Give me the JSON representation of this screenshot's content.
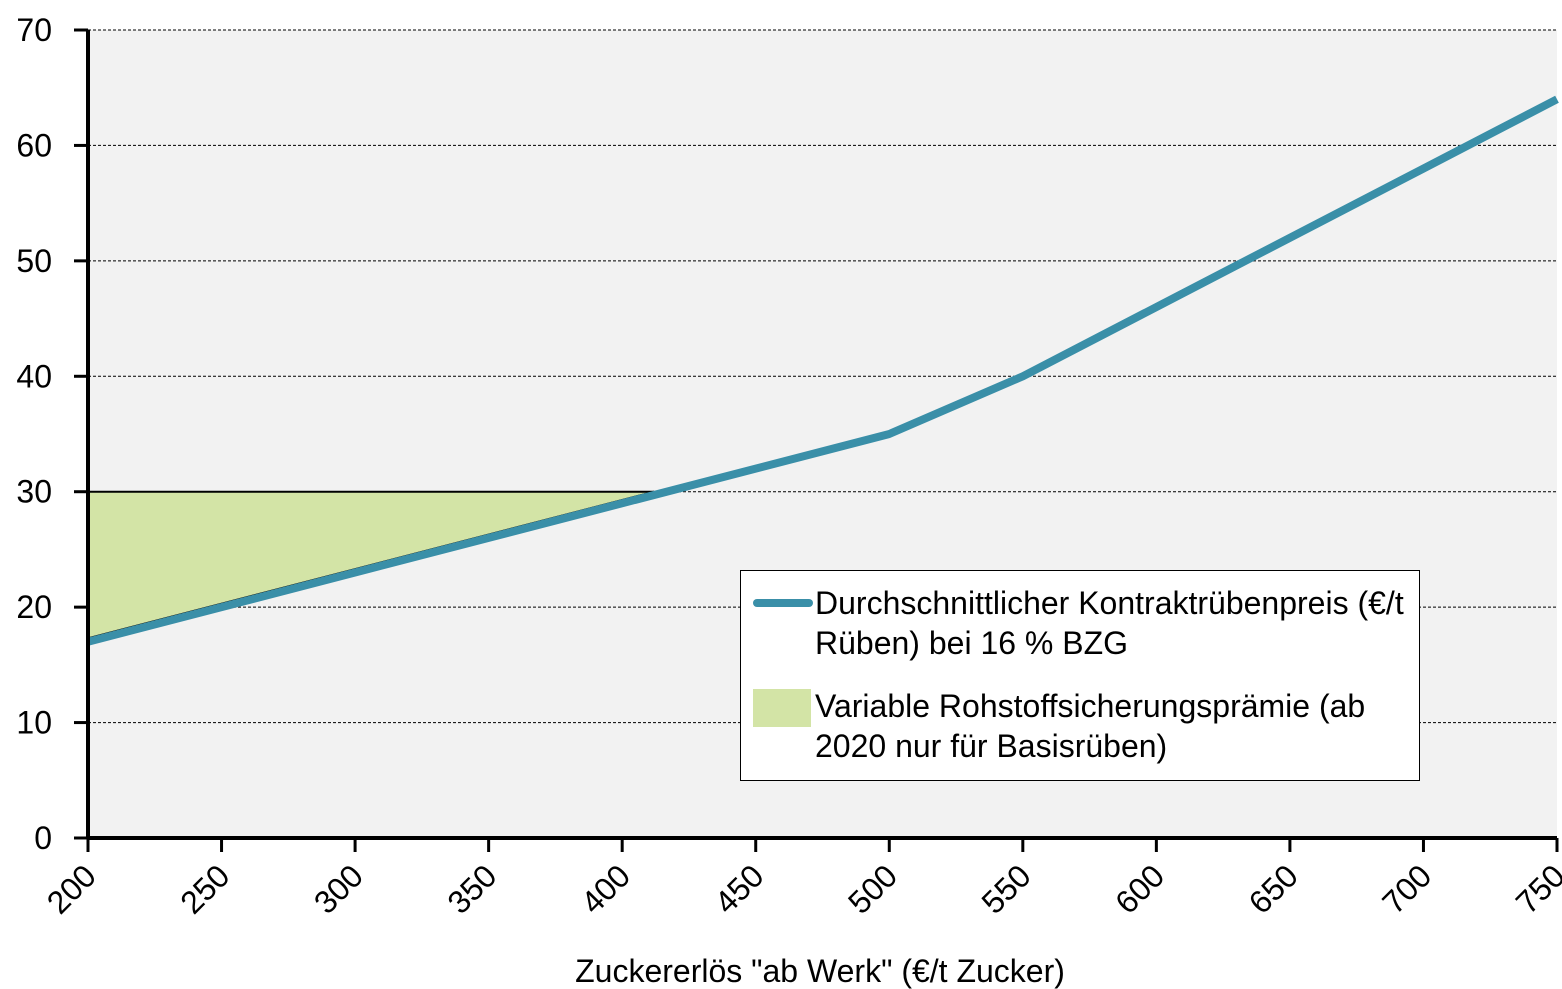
{
  "chart_data": {
    "type": "line",
    "x_label": "Zuckererlös \"ab Werk\" (€/t Zucker)",
    "xlim": [
      200,
      750
    ],
    "xticks": [
      200,
      250,
      300,
      350,
      400,
      450,
      500,
      550,
      600,
      650,
      700,
      750
    ],
    "ylim": [
      0,
      70
    ],
    "yticks": [
      0,
      10,
      20,
      30,
      40,
      50,
      60,
      70
    ],
    "grid": true,
    "series": [
      {
        "name": "Durchschnittlicher Kontraktrübenpreis (€/t Rüben) bei 16 % BZG",
        "color": "#3a8fa8",
        "x": [
          200,
          250,
          300,
          350,
          400,
          450,
          500,
          550,
          600,
          650,
          700,
          750
        ],
        "values": [
          17,
          20,
          23,
          26,
          29,
          32,
          35,
          40,
          46,
          52,
          58,
          64
        ]
      }
    ],
    "areas": [
      {
        "name": "Variable Rohstoffsicherungsprämie (ab 2020 nur für Basisrüben)",
        "color": "#d3e4a6",
        "x": [
          200,
          412
        ],
        "upper": [
          30,
          30
        ],
        "lower": [
          17.3,
          30
        ]
      }
    ]
  }
}
